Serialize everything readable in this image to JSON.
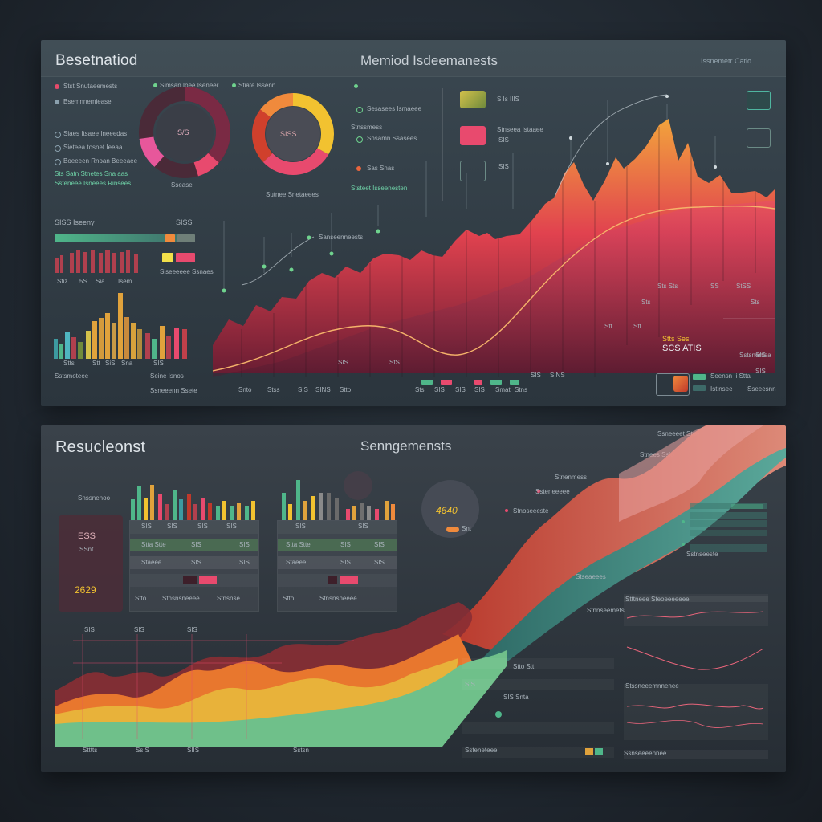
{
  "top": {
    "title": "Besetnatiod",
    "subtitle": "Memiod Isdeemanests",
    "header_right": "Issnemetr Catio",
    "legend": [
      {
        "text": "Stst Snutaeemests",
        "color": "#e64a6a"
      },
      {
        "text": "Bsemnnemiease",
        "color": "#8aa0ad"
      }
    ],
    "legend_mid": "Simsan Ioee Iseneer",
    "legend_small": "Stiate Issenn",
    "left_list": [
      {
        "text": "Siaes Itsaee Ineeedas",
        "color": "#8aa0ad"
      },
      {
        "text": "Sieteea tosnet Ieeaa",
        "color": "#8aa0ad"
      },
      {
        "text": "Boeeeen Rnoan Beeeaee",
        "color": "#8aa0ad"
      }
    ],
    "left_highlight_1": "Sts Satn Stnetes Sna aas",
    "left_highlight_2": "Ssteneee Isneees Rinsees",
    "donut1_center": "S/S",
    "donut1_caption": "Ssease",
    "donut2_center": "SISS",
    "donut2_caption": "Sutnee Snetaeees",
    "mid_list": [
      {
        "text": "Sesasees Ismaeee",
        "color": "#6fd38e"
      },
      {
        "text": "Snsamn Ssasees",
        "color": "#6fd38e"
      },
      {
        "text": "Sas Snas",
        "color": "#e9653d"
      }
    ],
    "mid_list_caption": "Ststeet Isseenesten",
    "mid_list_header": "Stnssmess",
    "swatch_labels": [
      "S Is IIIS",
      "Stnseea Istaaee",
      "SIS",
      "SIS"
    ],
    "mini_title": "SISS Iseeny",
    "mini_value": "SISS",
    "mini_caption": "Siseeeeee Ssnaes",
    "mini_ticks": [
      "Stiz",
      "5S",
      "Sia",
      "Isem"
    ],
    "mini_bottom": [
      "Stts",
      "Stt",
      "SiS",
      "Sna",
      "SIS",
      "Sstsmoteee",
      "Seine Isnos"
    ],
    "mini_bottom_caption": "Ssneeenn Ssete",
    "main_annotation": "Sanseenneests",
    "main_ticks": [
      "Snto",
      "Stss",
      "SIS",
      "SINS",
      "Stto",
      "Stsi",
      "SIS",
      "SIS",
      "SIS",
      "Smat",
      "Stns",
      "SIS",
      "SINS"
    ],
    "main_mid_ticks": [
      "SIS",
      "StS"
    ],
    "right_values": [
      "Sts Sts",
      "SS",
      "StSS"
    ],
    "right_title": "Stts Ses",
    "right_value": "SCS ATIS",
    "right_caption": "Sstsnentsa",
    "right_footer": [
      "Seensn Ii Stta",
      "Istinsee",
      "Sseeesnn"
    ],
    "right_side_values": [
      "Sts",
      "Sts",
      "Stt",
      "Stt"
    ],
    "right_tags": [
      "SIS",
      "SIS"
    ],
    "colors": {
      "accent_pink": "#e84a6e",
      "accent_orange": "#f08a3c",
      "accent_yellow": "#f2c230",
      "accent_green": "#4fb68a",
      "accent_teal": "#3d9aa0"
    }
  },
  "bottom": {
    "title": "Resucleonst",
    "subtitle": "Senngemensts",
    "header_right": "Ssneeeet Stee",
    "header_right_2": "Stnees Ssio",
    "badge_value": "ESS",
    "badge_caption": "SSnt",
    "left_value": "2629",
    "left_caption": "Snssnenoo",
    "table1_header": [
      "SIS",
      "SIS",
      "SIS",
      "SIS"
    ],
    "table1_rows": [
      [
        "Stta Stte",
        "SIS",
        "SIS"
      ],
      [
        "Staeee",
        "SIS",
        "SIS"
      ],
      [
        "Stto",
        "Stnsnsneeee",
        "Stnsnse"
      ]
    ],
    "table2_header": [
      "SIS",
      "SIS"
    ],
    "table2_rows": [
      [
        "Stta Stte",
        "SIS",
        "SIS"
      ],
      [
        "Staeee",
        "SIS",
        "SIS"
      ],
      [
        "Stto",
        "Stnsnsneeee"
      ]
    ],
    "circle_value": "4640",
    "circle_caption": "Snt",
    "circle_label": "Stnenmess",
    "list_labels": [
      "Ssteneeeee",
      "Stnoseeeste",
      "Stseaeees",
      "Sstnseeste"
    ],
    "right_panels": [
      "Stttneee Steoeeeeeee",
      "Stnnseemets",
      "Stssneeemnnenee",
      "Ssnseeeennee"
    ],
    "mid_labels": [
      "Stto Stt",
      "SIS Snta",
      "SIS",
      "Ssteneteee"
    ],
    "bottom_ticks": [
      "Stttts",
      "SsIS",
      "SIIS",
      "Sstsn"
    ],
    "top_ticks": [
      "SIS",
      "SIS",
      "SIS"
    ],
    "colors": {
      "red": "#c0392b",
      "orange": "#e8772e",
      "yellow": "#e8b23a",
      "green": "#5fb774",
      "teal": "#3b9c94",
      "pink": "#e9657b"
    }
  }
}
